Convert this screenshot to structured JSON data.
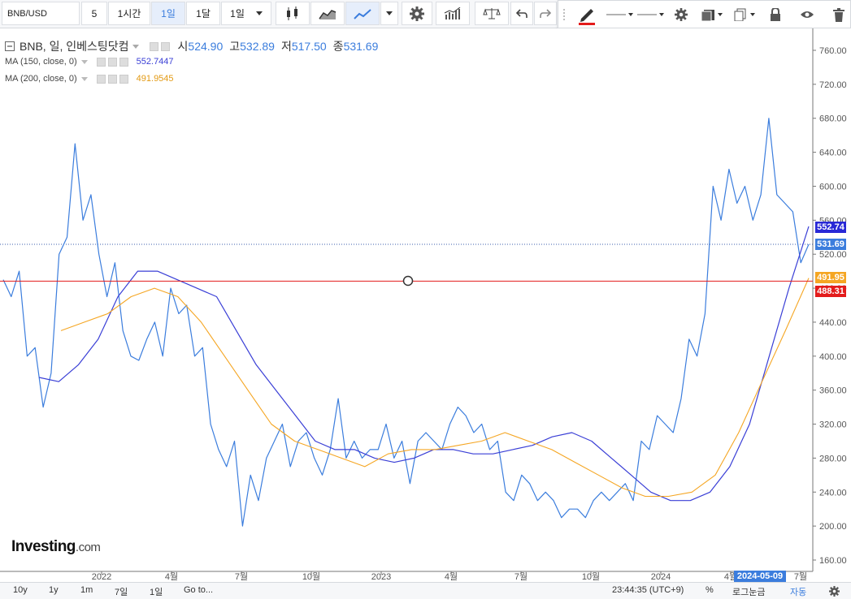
{
  "toolbar": {
    "symbol": "BNB/USD",
    "interval_a": "5",
    "interval_b": "1시간",
    "interval_c": "1일",
    "interval_d": "1달",
    "interval_e": "1일"
  },
  "legend": {
    "title": "BNB, 일, 인베스팅닷컴",
    "open_label": "시",
    "open": "524.90",
    "high_label": "고",
    "high": "532.89",
    "low_label": "저",
    "low": "517.50",
    "close_label": "종",
    "close": "531.69",
    "ma150_label": "MA (150, close, 0)",
    "ma150_value": "552.7447",
    "ma200_label": "MA (200, close, 0)",
    "ma200_value": "491.9545"
  },
  "colors": {
    "price": "#3b7ddd",
    "ma150": "#3a3fd6",
    "ma200": "#f5a623",
    "hline": "#e31b1b"
  },
  "price_tags": {
    "ma150": "552.74",
    "last": "531.69",
    "ma200": "491.95",
    "hline": "488.31"
  },
  "date_tag": "2024-05-09",
  "logo": {
    "main": "Investing",
    "suffix": ".com"
  },
  "bottom": {
    "r10y": "10y",
    "r1y": "1y",
    "r1m": "1m",
    "r7d": "7일",
    "r1d": "1일",
    "goto": "Go to...",
    "time": "23:44:35 (UTC+9)",
    "percent": "%",
    "log": "로그눈금",
    "auto": "자동"
  },
  "chart_data": {
    "type": "line",
    "ylim": [
      140,
      780
    ],
    "y_ticks": [
      "760.00",
      "720.00",
      "680.00",
      "640.00",
      "600.00",
      "560.00",
      "520.00",
      "480.00",
      "440.00",
      "400.00",
      "360.00",
      "320.00",
      "280.00",
      "240.00",
      "200.00",
      "160.00"
    ],
    "x_ticks": [
      "2022",
      "4월",
      "7월",
      "10월",
      "2023",
      "4월",
      "7월",
      "10월",
      "2024",
      "4월",
      "7월"
    ],
    "horizontal_line": 488.31,
    "series": [
      {
        "name": "BNB",
        "values": [
          490,
          470,
          500,
          400,
          410,
          340,
          380,
          520,
          540,
          650,
          560,
          590,
          520,
          470,
          510,
          430,
          400,
          395,
          420,
          440,
          400,
          480,
          450,
          460,
          400,
          410,
          320,
          290,
          270,
          300,
          200,
          260,
          230,
          280,
          300,
          320,
          270,
          300,
          310,
          280,
          260,
          290,
          350,
          280,
          300,
          280,
          290,
          290,
          320,
          280,
          300,
          250,
          300,
          310,
          300,
          290,
          320,
          340,
          330,
          310,
          320,
          290,
          300,
          240,
          230,
          260,
          250,
          230,
          240,
          230,
          210,
          220,
          220,
          210,
          230,
          240,
          230,
          240,
          250,
          230,
          300,
          290,
          330,
          320,
          310,
          350,
          420,
          400,
          450,
          600,
          560,
          620,
          580,
          600,
          560,
          590,
          680,
          590,
          580,
          570,
          510,
          531.69
        ]
      },
      {
        "name": "MA (150, close, 0)",
        "values": [
          375,
          370,
          390,
          420,
          470,
          500,
          500,
          490,
          480,
          470,
          430,
          390,
          360,
          330,
          300,
          290,
          290,
          280,
          275,
          280,
          290,
          290,
          285,
          285,
          290,
          295,
          305,
          310,
          300,
          280,
          260,
          240,
          230,
          230,
          240,
          270,
          320,
          400,
          480,
          552.74
        ]
      },
      {
        "name": "MA (200, close, 0)",
        "values": [
          430,
          440,
          450,
          470,
          480,
          470,
          440,
          400,
          360,
          320,
          300,
          290,
          280,
          270,
          285,
          290,
          290,
          295,
          300,
          310,
          300,
          290,
          275,
          260,
          245,
          235,
          235,
          240,
          260,
          310,
          370,
          430,
          491.95
        ]
      }
    ]
  }
}
